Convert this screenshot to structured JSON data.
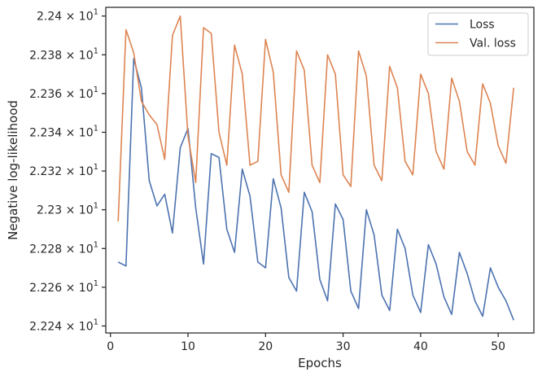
{
  "chart_data": {
    "type": "line",
    "title": "",
    "xlabel": "Epochs",
    "ylabel": "Negative log-likelihood",
    "xlim": [
      -0.6,
      54.6
    ],
    "ylim": [
      22.2364,
      22.4045
    ],
    "grid": false,
    "legend_position": "top-right",
    "x_ticks": [
      0,
      10,
      20,
      30,
      40,
      50
    ],
    "x_tick_labels": [
      "0",
      "10",
      "20",
      "30",
      "40",
      "50"
    ],
    "y_ticks": [
      22.24,
      22.26,
      22.28,
      22.3,
      22.32,
      22.34,
      22.36,
      22.38,
      22.4
    ],
    "y_tick_mantissas": [
      "2.224",
      "2.226",
      "2.228",
      "2.23",
      "2.232",
      "2.234",
      "2.236",
      "2.238",
      "2.24"
    ],
    "y_tick_times": "×",
    "y_tick_base": "10",
    "y_tick_exponent": "1",
    "series": [
      {
        "name": "Loss",
        "color": "#4c72b0",
        "x": [
          1,
          2,
          3,
          4,
          5,
          6,
          7,
          8,
          9,
          10,
          11,
          12,
          13,
          14,
          15,
          16,
          17,
          18,
          19,
          20,
          21,
          22,
          23,
          24,
          25,
          26,
          27,
          28,
          29,
          30,
          31,
          32,
          33,
          34,
          35,
          36,
          37,
          38,
          39,
          40,
          41,
          42,
          43,
          44,
          45,
          46,
          47,
          48,
          49,
          50,
          51,
          52
        ],
        "y": [
          22.273,
          22.271,
          22.378,
          22.363,
          22.315,
          22.302,
          22.308,
          22.288,
          22.332,
          22.342,
          22.301,
          22.272,
          22.329,
          22.327,
          22.29,
          22.278,
          22.321,
          22.307,
          22.273,
          22.27,
          22.316,
          22.301,
          22.265,
          22.258,
          22.309,
          22.299,
          22.264,
          22.253,
          22.303,
          22.295,
          22.258,
          22.249,
          22.3,
          22.287,
          22.256,
          22.248,
          22.29,
          22.28,
          22.256,
          22.247,
          22.282,
          22.272,
          22.255,
          22.246,
          22.278,
          22.267,
          22.253,
          22.245,
          22.27,
          22.26,
          22.253,
          22.243
        ]
      },
      {
        "name": "Val. loss",
        "color": "#dd8452",
        "x": [
          1,
          2,
          3,
          4,
          5,
          6,
          7,
          8,
          9,
          10,
          11,
          12,
          13,
          14,
          15,
          16,
          17,
          18,
          19,
          20,
          21,
          22,
          23,
          24,
          25,
          26,
          27,
          28,
          29,
          30,
          31,
          32,
          33,
          34,
          35,
          36,
          37,
          38,
          39,
          40,
          41,
          42,
          43,
          44,
          45,
          46,
          47,
          48,
          49,
          50,
          51,
          52
        ],
        "y": [
          22.294,
          22.393,
          22.381,
          22.356,
          22.349,
          22.344,
          22.326,
          22.39,
          22.4,
          22.338,
          22.314,
          22.394,
          22.391,
          22.34,
          22.323,
          22.385,
          22.37,
          22.323,
          22.325,
          22.388,
          22.371,
          22.318,
          22.309,
          22.382,
          22.372,
          22.323,
          22.314,
          22.38,
          22.37,
          22.318,
          22.312,
          22.382,
          22.369,
          22.323,
          22.315,
          22.374,
          22.363,
          22.325,
          22.318,
          22.37,
          22.36,
          22.33,
          22.321,
          22.368,
          22.356,
          22.33,
          22.323,
          22.365,
          22.355,
          22.333,
          22.324,
          22.363
        ]
      }
    ]
  }
}
